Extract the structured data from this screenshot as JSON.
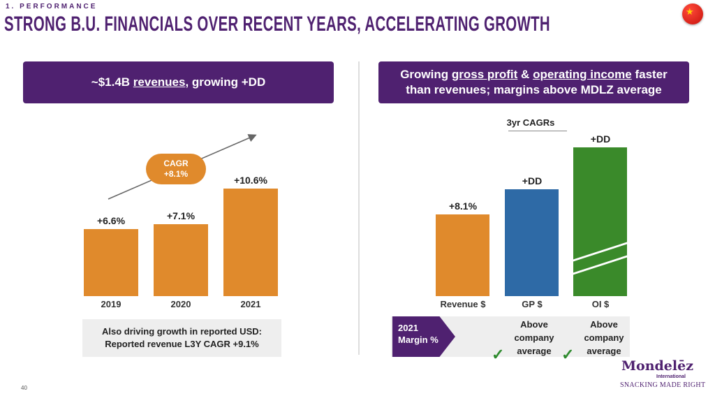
{
  "header": {
    "section": "1. PERFORMANCE",
    "title": "STRONG B.U. FINANCIALS OVER RECENT YEARS, ACCELERATING GROWTH",
    "flag_icon": "china-flag-icon"
  },
  "left": {
    "banner": {
      "pre": "~$1.4B ",
      "underlined": "revenues",
      "post": ", growing +DD"
    },
    "cagr_bubble": {
      "line1": "CAGR",
      "line2": "+8.1%"
    },
    "note": {
      "line1": "Also driving growth in reported USD:",
      "line2": "Reported revenue L3Y CAGR +9.1%"
    }
  },
  "right": {
    "banner": {
      "pre": "Growing ",
      "u1": "gross profit",
      "mid": " & ",
      "u2": "operating income",
      "post": " faster",
      "line2": "than revenues; margins above MDLZ average"
    },
    "subtitle": "3yr CAGRs",
    "margin_tag": {
      "line1": "2021",
      "line2": "Margin %"
    },
    "margins": [
      {
        "line1": "Above",
        "line2": "company",
        "line3": "average"
      },
      {
        "line1": "Above",
        "line2": "company",
        "line3": "average"
      }
    ]
  },
  "footer": {
    "page": "40",
    "logo": "Mondelēz",
    "logo_sub": "International",
    "tagline": "SNACKING MADE RIGHT"
  },
  "colors": {
    "purple": "#4f2170",
    "orange": "#e08a2c",
    "blue": "#2e6aa6",
    "green": "#3a8a2a",
    "check": "#2e8b2e"
  },
  "chart_data": [
    {
      "type": "bar",
      "categories": [
        "2019",
        "2020",
        "2021"
      ],
      "values": [
        6.6,
        7.1,
        10.6
      ],
      "data_labels": [
        "+6.6%",
        "+7.1%",
        "+10.6%"
      ],
      "color": "#e08a2c",
      "annotation": "CAGR +8.1%",
      "grid": false
    },
    {
      "type": "bar",
      "title": "3yr CAGRs",
      "categories": [
        "Revenue $",
        "GP $",
        "OI $"
      ],
      "values": [
        8.1,
        null,
        null
      ],
      "data_labels": [
        "+8.1%",
        "+DD",
        "+DD"
      ],
      "colors": [
        "#e08a2c",
        "#2e6aa6",
        "#3a8a2a"
      ],
      "axis_break": "OI $",
      "grid": false
    }
  ]
}
